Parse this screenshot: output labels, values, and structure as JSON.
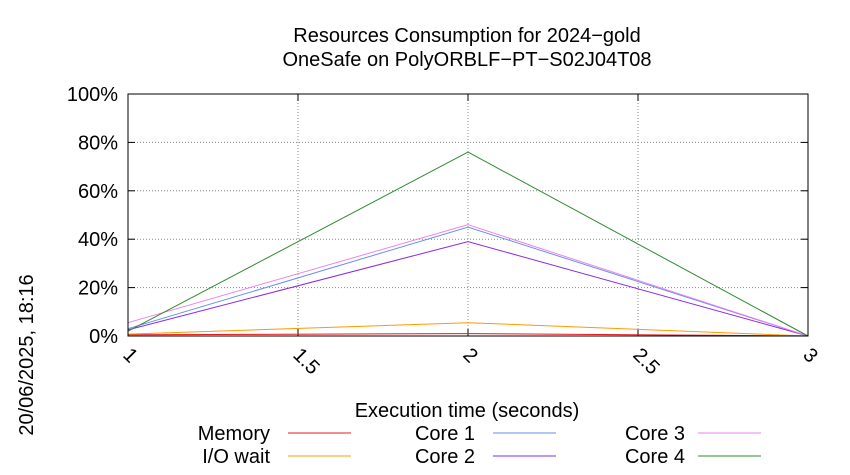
{
  "chart_data": {
    "type": "line",
    "title": "Resources Consumption for 2024−gold",
    "subtitle": "OneSafe on PolyORBLF−PT−S02J04T08",
    "xlabel": "Execution time (seconds)",
    "side_label": "20/06/2025, 18:16",
    "xlim": [
      1,
      3
    ],
    "ylim": [
      0,
      100
    ],
    "x_ticks": [
      {
        "value": 1,
        "label": "1"
      },
      {
        "value": 1.5,
        "label": "1.5"
      },
      {
        "value": 2,
        "label": "2"
      },
      {
        "value": 2.5,
        "label": "2.5"
      },
      {
        "value": 3,
        "label": "3"
      }
    ],
    "y_ticks": [
      {
        "value": 0,
        "label": "0%"
      },
      {
        "value": 20,
        "label": "20%"
      },
      {
        "value": 40,
        "label": "40%"
      },
      {
        "value": 60,
        "label": "60%"
      },
      {
        "value": 80,
        "label": "80%"
      },
      {
        "value": 100,
        "label": "100%"
      }
    ],
    "grid": true,
    "legend_position": "bottom",
    "x": [
      1,
      2,
      3
    ],
    "series": [
      {
        "name": "Memory",
        "color": "#e41a1c",
        "values": [
          0.5,
          1.0,
          0
        ]
      },
      {
        "name": "I/O wait",
        "color": "#ff9900",
        "values": [
          0.8,
          5.5,
          0
        ]
      },
      {
        "name": "Core 1",
        "color": "#6a8ee8",
        "values": [
          3,
          45,
          0
        ]
      },
      {
        "name": "Core 2",
        "color": "#8a2be2",
        "values": [
          2.5,
          39,
          0
        ]
      },
      {
        "name": "Core 3",
        "color": "#ee82ee",
        "values": [
          5.5,
          46,
          0
        ]
      },
      {
        "name": "Core 4",
        "color": "#2e8b2e",
        "values": [
          2,
          76,
          0
        ]
      }
    ]
  }
}
